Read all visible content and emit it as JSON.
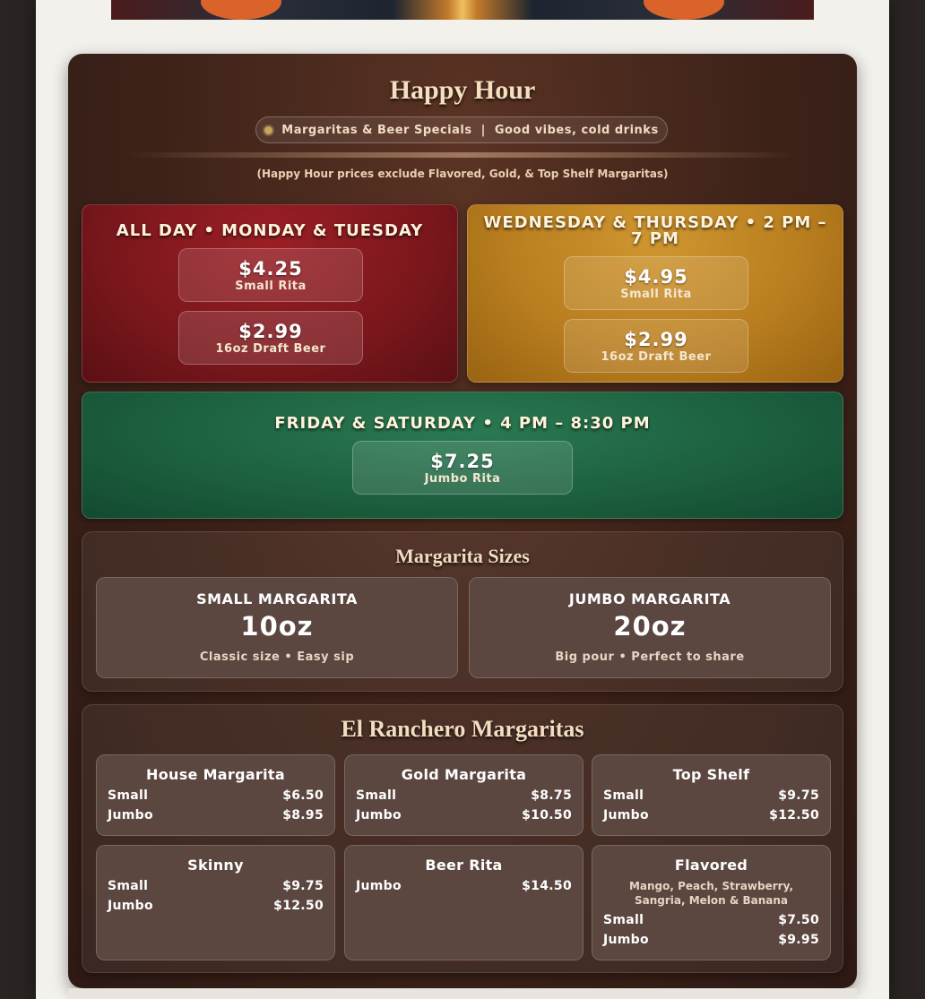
{
  "header": {
    "title": "Happy Hour",
    "pill": {
      "left": "Margaritas & Beer Specials",
      "separator": "|",
      "right": "Good vibes, cold drinks"
    },
    "note": "(Happy Hour prices exclude Flavored, Gold, & Top Shelf Margaritas)"
  },
  "specials": {
    "mon_tue": {
      "heading": "ALL DAY • MONDAY & TUESDAY",
      "items": [
        {
          "price": "$4.25",
          "label": "Small Rita"
        },
        {
          "price": "$2.99",
          "label": "16oz Draft Beer"
        }
      ]
    },
    "wed_thu": {
      "heading": "WEDNESDAY & THURSDAY • 2 PM – 7 PM",
      "items": [
        {
          "price": "$4.95",
          "label": "Small Rita"
        },
        {
          "price": "$2.99",
          "label": "16oz Draft Beer"
        }
      ]
    },
    "fri_sat": {
      "heading": "FRIDAY & SATURDAY • 4 PM – 8:30 PM",
      "items": [
        {
          "price": "$7.25",
          "label": "Jumbo Rita"
        }
      ]
    }
  },
  "sizes": {
    "title": "Margarita Sizes",
    "cards": [
      {
        "name": "SMALL MARGARITA",
        "oz": "10oz",
        "desc": "Classic size • Easy sip"
      },
      {
        "name": "JUMBO MARGARITA",
        "oz": "20oz",
        "desc": "Big pour • Perfect to share"
      }
    ]
  },
  "menu": {
    "title": "El Ranchero Margaritas",
    "items": [
      {
        "name": "House Margarita",
        "desc": "",
        "rows": [
          {
            "size": "Small",
            "price": "$6.50"
          },
          {
            "size": "Jumbo",
            "price": "$8.95"
          }
        ]
      },
      {
        "name": "Gold Margarita",
        "desc": "",
        "rows": [
          {
            "size": "Small",
            "price": "$8.75"
          },
          {
            "size": "Jumbo",
            "price": "$10.50"
          }
        ]
      },
      {
        "name": "Top Shelf",
        "desc": "",
        "rows": [
          {
            "size": "Small",
            "price": "$9.75"
          },
          {
            "size": "Jumbo",
            "price": "$12.50"
          }
        ]
      },
      {
        "name": "Skinny",
        "desc": "",
        "rows": [
          {
            "size": "Small",
            "price": "$9.75"
          },
          {
            "size": "Jumbo",
            "price": "$12.50"
          }
        ]
      },
      {
        "name": "Beer Rita",
        "desc": "",
        "rows": [
          {
            "size": "Jumbo",
            "price": "$14.50"
          }
        ]
      },
      {
        "name": "Flavored",
        "desc": "Mango, Peach, Strawberry, Sangria, Melon & Banana",
        "rows": [
          {
            "size": "Small",
            "price": "$7.50"
          },
          {
            "size": "Jumbo",
            "price": "$9.95"
          }
        ]
      }
    ]
  }
}
